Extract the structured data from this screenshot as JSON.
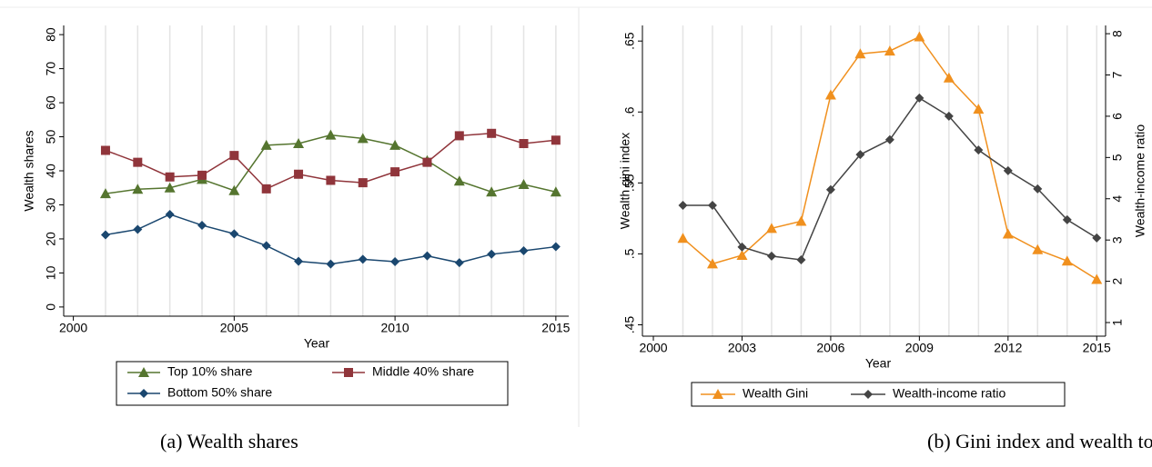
{
  "chart_data": [
    {
      "type": "line",
      "caption": "(a) Wealth shares",
      "xlabel": "Year",
      "ylabel": "Wealth shares",
      "x": [
        2001,
        2002,
        2003,
        2004,
        2005,
        2006,
        2007,
        2008,
        2009,
        2010,
        2011,
        2012,
        2013,
        2014,
        2015
      ],
      "xlim": [
        1999.7,
        2015.4
      ],
      "xticks": [
        2000,
        2005,
        2010,
        2015
      ],
      "ylim": [
        -2.7,
        82.7
      ],
      "yticks": [
        0,
        10,
        20,
        30,
        40,
        50,
        60,
        70,
        80
      ],
      "grid": "x",
      "legend": "bottom",
      "series": [
        {
          "name": "Top 10% share",
          "color": "#55752f",
          "marker": "triangle",
          "values": [
            33.3,
            34.6,
            35,
            37.5,
            34.2,
            47.5,
            48,
            50.5,
            49.5,
            47.5,
            43,
            37,
            33.8,
            36,
            33.8
          ]
        },
        {
          "name": "Middle 40% share",
          "color": "#90353b",
          "marker": "square",
          "values": [
            46,
            42.5,
            38.2,
            38.7,
            44.5,
            34.7,
            39,
            37.2,
            36.5,
            39.7,
            42.5,
            50.3,
            51,
            48,
            49
          ]
        },
        {
          "name": "Bottom 50% share",
          "color": "#1a476f",
          "marker": "diamond",
          "values": [
            21.2,
            22.8,
            27.2,
            24,
            21.5,
            18,
            13.4,
            12.6,
            14,
            13.3,
            15,
            13,
            15.5,
            16.5,
            17.7
          ]
        }
      ]
    },
    {
      "type": "line",
      "caption": "(b) Gini index and wealth to income ratio",
      "xlabel": "Year",
      "ylabel": "Wealth gini index",
      "y2label": "Wealth-income ratio",
      "x": [
        2001,
        2002,
        2003,
        2004,
        2005,
        2006,
        2007,
        2008,
        2009,
        2010,
        2011,
        2012,
        2013,
        2014,
        2015
      ],
      "xlim": [
        1999.63,
        2015.3
      ],
      "xticks": [
        2000,
        2003,
        2006,
        2009,
        2012,
        2015
      ],
      "ylim": [
        0.442,
        0.661
      ],
      "yticks": [
        {
          "value": 0.45,
          "label": ".45"
        },
        {
          "value": 0.5,
          "label": ".5"
        },
        {
          "value": 0.55,
          "label": ".55"
        },
        {
          "value": 0.6,
          "label": ".6"
        },
        {
          "value": 0.65,
          "label": ".65"
        }
      ],
      "y2lim": [
        0.67,
        8.2
      ],
      "y2ticks": [
        1,
        2,
        3,
        4,
        5,
        6,
        7,
        8
      ],
      "grid": "x",
      "legend": "bottom",
      "series": [
        {
          "name": "Wealth Gini",
          "color": "#f0901e",
          "marker": "triangle",
          "values": [
            0.511,
            0.493,
            0.499,
            0.518,
            0.523,
            0.612,
            0.641,
            0.643,
            0.653,
            0.624,
            0.602,
            0.514,
            0.503,
            0.495,
            0.482
          ]
        },
        {
          "name": "Wealth-income ratio",
          "color": "#444444",
          "marker": "diamond",
          "axis": "y2",
          "values": [
            3.84,
            3.84,
            2.83,
            2.61,
            2.52,
            4.22,
            5.07,
            5.43,
            6.44,
            6.0,
            5.18,
            4.68,
            4.24,
            3.49,
            3.05
          ]
        }
      ]
    }
  ]
}
